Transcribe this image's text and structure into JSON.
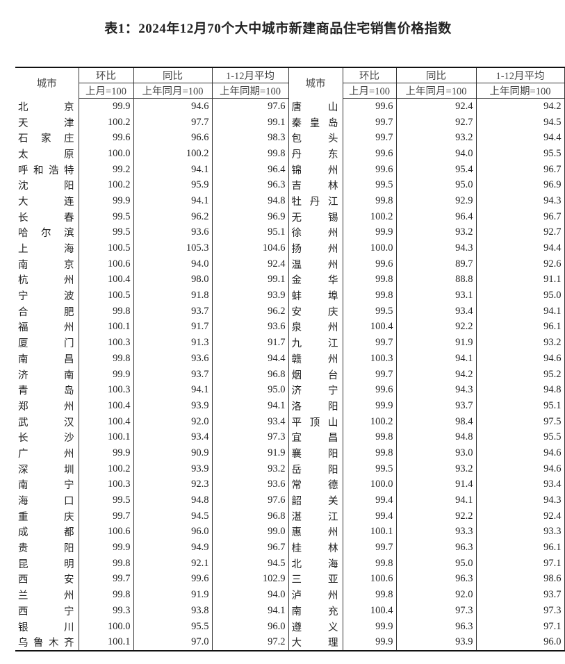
{
  "title": "表1：2024年12月70个大中城市新建商品住宅销售价格指数",
  "headers": {
    "city": "城市",
    "mom": "环比",
    "yoy": "同比",
    "avg": "1-12月平均",
    "mom_base": "上月=100",
    "yoy_base": "上年同月=100",
    "avg_base": "上年同期=100"
  },
  "left_rows": [
    [
      "北京",
      "99.9",
      "94.6",
      "97.6"
    ],
    [
      "天津",
      "100.2",
      "97.7",
      "99.1"
    ],
    [
      "石家庄",
      "99.6",
      "96.6",
      "98.3"
    ],
    [
      "太原",
      "100.0",
      "100.2",
      "99.8"
    ],
    [
      "呼和浩特",
      "99.2",
      "94.1",
      "96.4"
    ],
    [
      "沈阳",
      "100.2",
      "95.9",
      "96.3"
    ],
    [
      "大连",
      "99.9",
      "94.1",
      "94.8"
    ],
    [
      "长春",
      "99.5",
      "96.2",
      "96.9"
    ],
    [
      "哈尔滨",
      "99.5",
      "93.6",
      "95.1"
    ],
    [
      "上海",
      "100.5",
      "105.3",
      "104.6"
    ],
    [
      "南京",
      "100.6",
      "94.0",
      "92.4"
    ],
    [
      "杭州",
      "100.4",
      "98.0",
      "99.1"
    ],
    [
      "宁波",
      "100.5",
      "91.8",
      "93.9"
    ],
    [
      "合肥",
      "99.8",
      "93.7",
      "96.2"
    ],
    [
      "福州",
      "100.1",
      "91.7",
      "93.6"
    ],
    [
      "厦门",
      "100.3",
      "91.3",
      "91.7"
    ],
    [
      "南昌",
      "99.8",
      "93.6",
      "94.4"
    ],
    [
      "济南",
      "99.9",
      "93.7",
      "96.8"
    ],
    [
      "青岛",
      "100.3",
      "94.1",
      "95.0"
    ],
    [
      "郑州",
      "100.4",
      "93.9",
      "94.1"
    ],
    [
      "武汉",
      "100.4",
      "92.0",
      "93.4"
    ],
    [
      "长沙",
      "100.1",
      "93.4",
      "97.3"
    ],
    [
      "广州",
      "99.9",
      "90.9",
      "91.9"
    ],
    [
      "深圳",
      "100.2",
      "93.9",
      "93.2"
    ],
    [
      "南宁",
      "100.3",
      "92.3",
      "93.6"
    ],
    [
      "海口",
      "99.5",
      "94.8",
      "97.6"
    ],
    [
      "重庆",
      "99.7",
      "94.5",
      "96.8"
    ],
    [
      "成都",
      "100.6",
      "96.0",
      "99.0"
    ],
    [
      "贵阳",
      "99.9",
      "94.9",
      "96.7"
    ],
    [
      "昆明",
      "99.8",
      "92.1",
      "94.5"
    ],
    [
      "西安",
      "99.7",
      "99.6",
      "102.9"
    ],
    [
      "兰州",
      "99.8",
      "91.9",
      "94.0"
    ],
    [
      "西宁",
      "99.3",
      "93.8",
      "94.1"
    ],
    [
      "银川",
      "100.0",
      "95.5",
      "96.0"
    ],
    [
      "乌鲁木齐",
      "100.1",
      "97.0",
      "97.2"
    ]
  ],
  "right_rows": [
    [
      "唐山",
      "99.6",
      "92.4",
      "94.2"
    ],
    [
      "秦皇岛",
      "99.7",
      "92.7",
      "94.5"
    ],
    [
      "包头",
      "99.7",
      "93.2",
      "94.4"
    ],
    [
      "丹东",
      "99.6",
      "94.0",
      "95.5"
    ],
    [
      "锦州",
      "99.6",
      "95.4",
      "96.7"
    ],
    [
      "吉林",
      "99.5",
      "95.0",
      "96.9"
    ],
    [
      "牡丹江",
      "99.8",
      "92.9",
      "94.3"
    ],
    [
      "无锡",
      "100.2",
      "96.4",
      "96.7"
    ],
    [
      "徐州",
      "99.9",
      "93.2",
      "92.7"
    ],
    [
      "扬州",
      "100.0",
      "94.3",
      "94.4"
    ],
    [
      "温州",
      "99.6",
      "89.7",
      "92.6"
    ],
    [
      "金华",
      "99.8",
      "88.8",
      "91.1"
    ],
    [
      "蚌埠",
      "99.8",
      "93.1",
      "95.0"
    ],
    [
      "安庆",
      "99.5",
      "93.4",
      "94.1"
    ],
    [
      "泉州",
      "100.4",
      "92.2",
      "96.1"
    ],
    [
      "九江",
      "99.7",
      "91.9",
      "93.2"
    ],
    [
      "赣州",
      "100.3",
      "94.1",
      "94.6"
    ],
    [
      "烟台",
      "99.7",
      "94.2",
      "95.2"
    ],
    [
      "济宁",
      "99.6",
      "94.3",
      "94.8"
    ],
    [
      "洛阳",
      "99.9",
      "93.7",
      "95.1"
    ],
    [
      "平顶山",
      "100.2",
      "98.4",
      "97.5"
    ],
    [
      "宜昌",
      "99.8",
      "94.8",
      "95.5"
    ],
    [
      "襄阳",
      "99.8",
      "93.0",
      "94.6"
    ],
    [
      "岳阳",
      "99.5",
      "93.2",
      "94.6"
    ],
    [
      "常德",
      "100.0",
      "91.4",
      "93.4"
    ],
    [
      "韶关",
      "99.4",
      "94.1",
      "94.3"
    ],
    [
      "湛江",
      "99.4",
      "92.2",
      "92.4"
    ],
    [
      "惠州",
      "100.1",
      "93.3",
      "93.3"
    ],
    [
      "桂林",
      "99.7",
      "96.3",
      "96.1"
    ],
    [
      "北海",
      "99.8",
      "95.0",
      "97.1"
    ],
    [
      "三亚",
      "100.6",
      "96.3",
      "98.6"
    ],
    [
      "泸州",
      "99.8",
      "92.0",
      "93.7"
    ],
    [
      "南充",
      "100.4",
      "97.3",
      "97.3"
    ],
    [
      "遵义",
      "99.9",
      "96.3",
      "97.1"
    ],
    [
      "大理",
      "99.9",
      "93.9",
      "96.0"
    ]
  ]
}
